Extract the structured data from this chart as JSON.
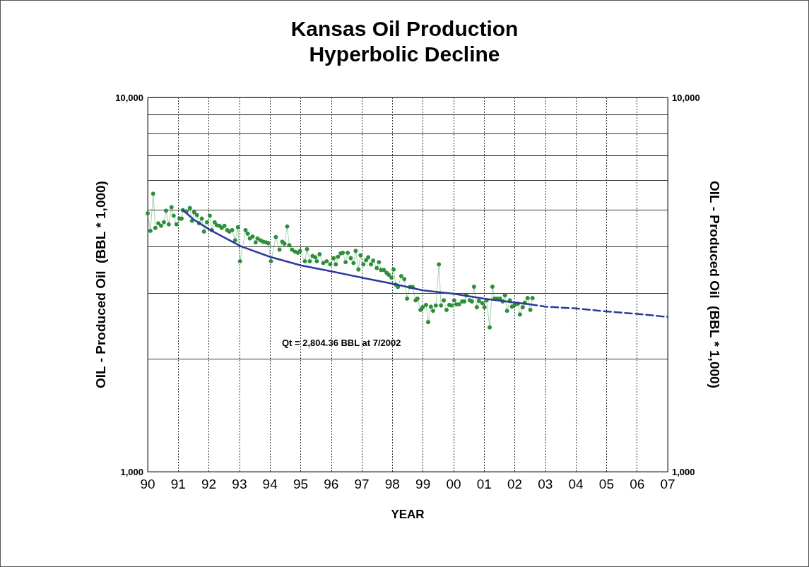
{
  "chart_data": {
    "type": "line",
    "title": "Kansas Oil Production\nHyperbolic Decline",
    "xlabel": "YEAR",
    "ylabel": "OIL - Produced Oil  (BBL * 1,000)",
    "y2label": "OIL - Produced Oil  (BBL * 1,000)",
    "annotations": [
      "Qt = 2,804.36 BBL at 7/2002"
    ],
    "log": "y",
    "grid": true,
    "xlim": [
      1990,
      2007
    ],
    "xticks": [
      {
        "value": 1990,
        "label": "90"
      },
      {
        "value": 1991,
        "label": "91"
      },
      {
        "value": 1992,
        "label": "92"
      },
      {
        "value": 1993,
        "label": "93"
      },
      {
        "value": 1994,
        "label": "94"
      },
      {
        "value": 1995,
        "label": "95"
      },
      {
        "value": 1996,
        "label": "96"
      },
      {
        "value": 1997,
        "label": "97"
      },
      {
        "value": 1998,
        "label": "98"
      },
      {
        "value": 1999,
        "label": "99"
      },
      {
        "value": 2000,
        "label": "00"
      },
      {
        "value": 2001,
        "label": "01"
      },
      {
        "value": 2002,
        "label": "02"
      },
      {
        "value": 2003,
        "label": "03"
      },
      {
        "value": 2004,
        "label": "04"
      },
      {
        "value": 2005,
        "label": "05"
      },
      {
        "value": 2006,
        "label": "06"
      },
      {
        "value": 2007,
        "label": "07"
      }
    ],
    "ylim": [
      1000,
      10000
    ],
    "yticks": [
      {
        "value": 1000,
        "label": "1,000"
      },
      {
        "value": 2000,
        "label": null
      },
      {
        "value": 3000,
        "label": null
      },
      {
        "value": 4000,
        "label": null
      },
      {
        "value": 5000,
        "label": null
      },
      {
        "value": 6000,
        "label": null
      },
      {
        "value": 7000,
        "label": null
      },
      {
        "value": 8000,
        "label": null
      },
      {
        "value": 9000,
        "label": null
      },
      {
        "value": 10000,
        "label": "10,000"
      }
    ],
    "y2lim": [
      1000,
      10000
    ],
    "y2ticks": [
      {
        "value": 1000,
        "label": "1,000"
      },
      {
        "value": 10000,
        "label": "10,000"
      }
    ],
    "series": [
      {
        "type": "line",
        "color": "#2e8f3a",
        "marker": "circle",
        "line_style": "solid",
        "x": [
          1990.0,
          1990.09,
          1990.18,
          1990.25,
          1990.35,
          1990.44,
          1990.53,
          1990.6,
          1990.69,
          1990.78,
          1990.85,
          1990.94,
          1991.04,
          1991.11,
          1991.15,
          1991.27,
          1991.38,
          1991.45,
          1991.52,
          1991.61,
          1991.68,
          1991.77,
          1991.84,
          1991.94,
          1992.03,
          1992.1,
          1992.19,
          1992.26,
          1992.35,
          1992.42,
          1992.51,
          1992.6,
          1992.67,
          1992.76,
          1992.86,
          1992.95,
          1993.02,
          1993.2,
          1993.27,
          1993.34,
          1993.43,
          1993.53,
          1993.59,
          1993.69,
          1993.78,
          1993.87,
          1993.94,
          1994.03,
          1994.19,
          1994.31,
          1994.4,
          1994.47,
          1994.56,
          1994.63,
          1994.72,
          1994.82,
          1994.91,
          1994.98,
          1995.14,
          1995.21,
          1995.3,
          1995.39,
          1995.48,
          1995.53,
          1995.62,
          1995.74,
          1995.85,
          1995.97,
          1996.08,
          1996.15,
          1996.22,
          1996.31,
          1996.38,
          1996.47,
          1996.54,
          1996.64,
          1996.73,
          1996.8,
          1996.89,
          1996.96,
          1997.05,
          1997.14,
          1997.21,
          1997.3,
          1997.37,
          1997.49,
          1997.56,
          1997.63,
          1997.72,
          1997.81,
          1997.88,
          1997.97,
          1998.04,
          1998.11,
          1998.18,
          1998.29,
          1998.39,
          1998.48,
          1998.57,
          1998.66,
          1998.76,
          1998.82,
          1998.92,
          1998.99,
          1999.1,
          1999.17,
          1999.26,
          1999.33,
          1999.42,
          1999.52,
          1999.59,
          1999.68,
          1999.77,
          1999.86,
          1999.93,
          2000.02,
          2000.09,
          2000.18,
          2000.28,
          2000.35,
          2000.41,
          2000.53,
          2000.6,
          2000.67,
          2000.76,
          2000.83,
          2000.94,
          2001.01,
          2001.08,
          2001.18,
          2001.27,
          2001.34,
          2001.43,
          2001.52,
          2001.61,
          2001.68,
          2001.75,
          2001.84,
          2001.91,
          2002.0,
          2002.1,
          2002.17,
          2002.26,
          2002.33,
          2002.42,
          2002.51,
          2002.58
        ],
        "values": [
          4900,
          4400,
          5530,
          4480,
          4610,
          4540,
          4640,
          4980,
          4580,
          5090,
          4830,
          4580,
          4745,
          4745,
          5000,
          4960,
          5065,
          4680,
          4935,
          4850,
          4610,
          4745,
          4380,
          4640,
          4830,
          4420,
          4640,
          4555,
          4540,
          4480,
          4540,
          4420,
          4380,
          4420,
          4150,
          4500,
          3650,
          4420,
          4325,
          4200,
          4250,
          4100,
          4200,
          4150,
          4115,
          4100,
          4080,
          3650,
          4235,
          3920,
          4115,
          4065,
          4520,
          4030,
          3920,
          3870,
          3845,
          3890,
          3650,
          3930,
          3650,
          3770,
          3740,
          3650,
          3810,
          3610,
          3650,
          3580,
          3720,
          3580,
          3750,
          3830,
          3845,
          3630,
          3845,
          3720,
          3610,
          3890,
          3470,
          3785,
          3580,
          3675,
          3740,
          3580,
          3665,
          3500,
          3630,
          3460,
          3460,
          3400,
          3360,
          3300,
          3470,
          3160,
          3115,
          3330,
          3270,
          2900,
          3115,
          3115,
          2870,
          2900,
          2705,
          2750,
          2790,
          2510,
          2760,
          2690,
          2780,
          3580,
          2780,
          2870,
          2705,
          2790,
          2780,
          2870,
          2800,
          2800,
          2850,
          2850,
          2960,
          2870,
          2850,
          3120,
          2750,
          2860,
          2820,
          2750,
          2870,
          2430,
          3120,
          2900,
          2900,
          2900,
          2850,
          2960,
          2690,
          2870,
          2760,
          2790,
          2810,
          2630,
          2750,
          2830,
          2910,
          2705,
          2910
        ]
      },
      {
        "type": "line",
        "color": "#2b3a9e",
        "marker": "none",
        "line_style": "solid",
        "x": [
          1991.15,
          1991.5,
          1992.05,
          1993.05,
          1994.0,
          1995.0,
          1996.0,
          1997.0,
          1998.0,
          1999.0,
          2000.0,
          2001.0,
          2002.0,
          2002.5
        ],
        "values": [
          5000,
          4720,
          4420,
          4000,
          3750,
          3560,
          3430,
          3300,
          3180,
          3050,
          2990,
          2900,
          2830,
          2800
        ]
      },
      {
        "type": "line",
        "color": "#2b3a9e",
        "marker": "none",
        "line_style": "dashed",
        "x": [
          2002.5,
          2003,
          2004,
          2005,
          2006,
          2007
        ],
        "values": [
          2800,
          2760,
          2730,
          2680,
          2640,
          2590
        ]
      }
    ]
  }
}
